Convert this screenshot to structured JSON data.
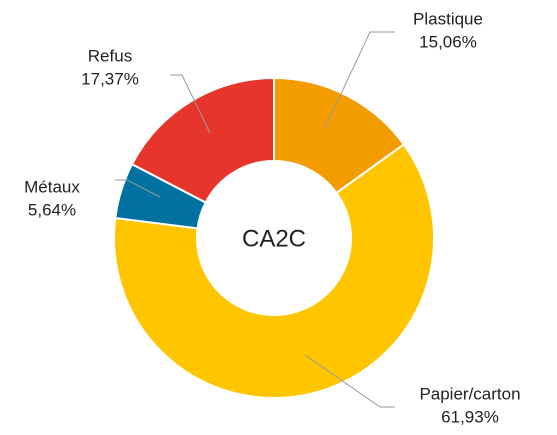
{
  "chart_data": {
    "type": "donut",
    "title": "CA2C",
    "categories": [
      "Plastique",
      "Papier/carton",
      "Métaux",
      "Refus"
    ],
    "values": [
      15.06,
      61.93,
      5.64,
      17.37
    ],
    "value_labels": [
      "15,06%",
      "61,93%",
      "5,64%",
      "17,37%"
    ],
    "colors": [
      "#f39c00",
      "#ffc600",
      "#0071a1",
      "#e8352b"
    ]
  }
}
